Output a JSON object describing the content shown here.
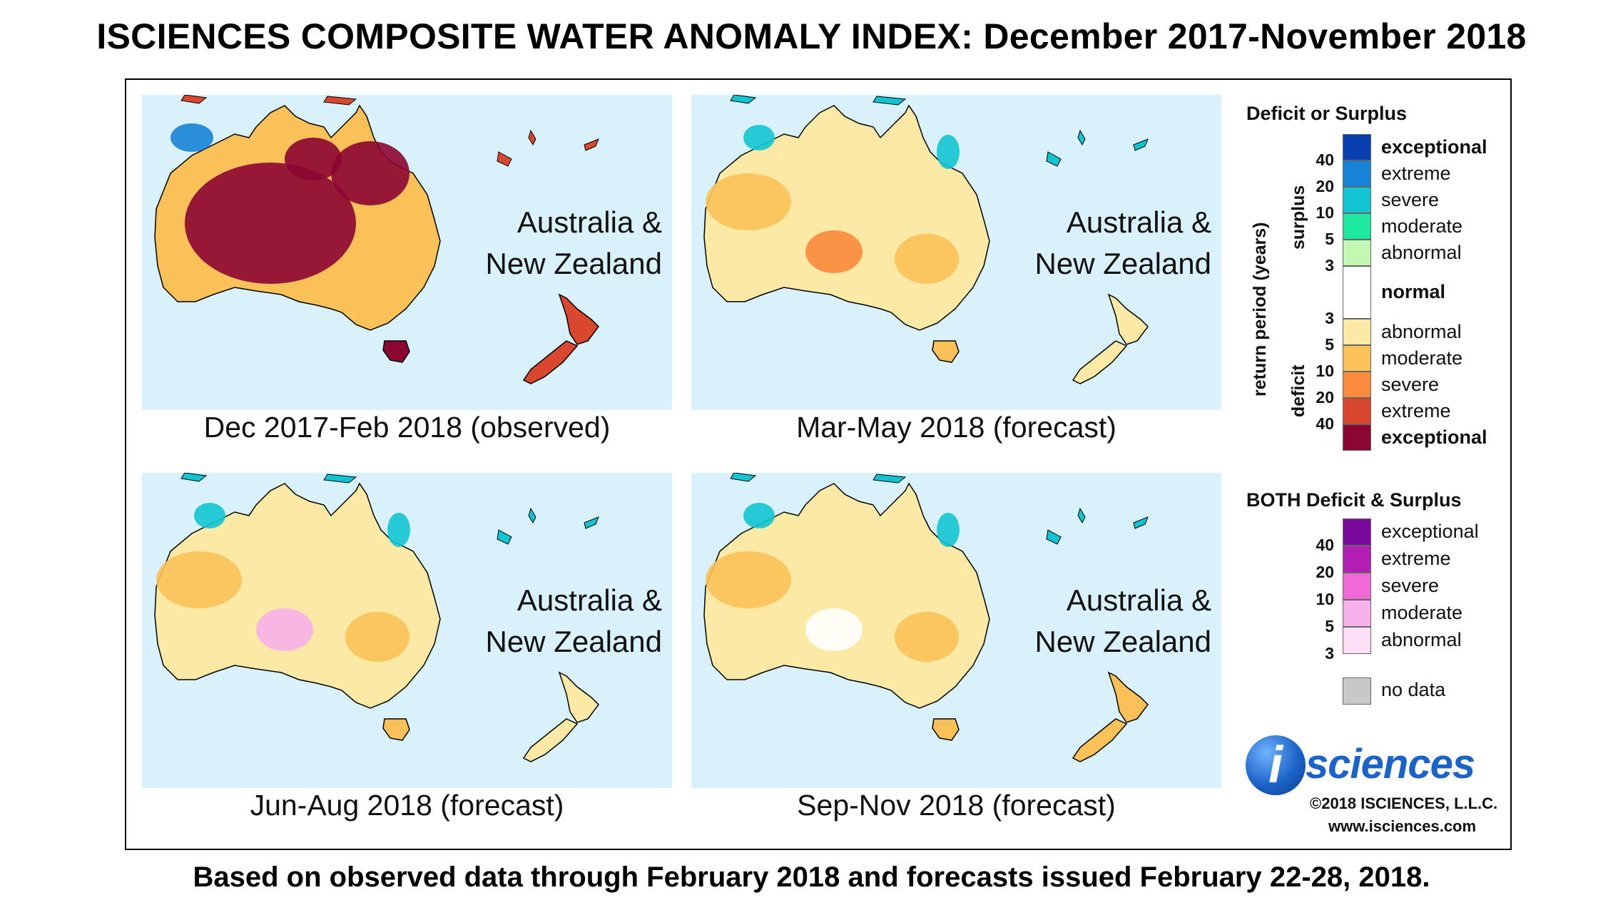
{
  "title": "ISCIENCES COMPOSITE WATER ANOMALY INDEX: December 2017-November 2018",
  "footer": "Based on observed data through February 2018 and forecasts issued February 22-28, 2018.",
  "region_label": "Australia &\nNew Zealand",
  "panels": [
    {
      "caption": "Dec 2017-Feb 2018 (observed)",
      "dominant_class": "deficit-exceptional"
    },
    {
      "caption": "Mar-May 2018 (forecast)",
      "dominant_class": "deficit-abnormal"
    },
    {
      "caption": "Jun-Aug 2018 (forecast)",
      "dominant_class": "deficit-abnormal"
    },
    {
      "caption": "Sep-Nov 2018 (forecast)",
      "dominant_class": "deficit-abnormal"
    }
  ],
  "legend": {
    "title": "Deficit or Surplus",
    "axis_label": "return period (years)",
    "surplus_label": "surplus",
    "deficit_label": "deficit",
    "surplus_classes": [
      {
        "label": "exceptional",
        "color": "#0a3fb0"
      },
      {
        "label": "extreme",
        "color": "#1683d6"
      },
      {
        "label": "severe",
        "color": "#12c4d2"
      },
      {
        "label": "moderate",
        "color": "#1ee8a0"
      },
      {
        "label": "abnormal",
        "color": "#c4f7b4"
      }
    ],
    "normal": {
      "label": "normal",
      "color": "#ffffff"
    },
    "deficit_classes": [
      {
        "label": "abnormal",
        "color": "#fde9a6"
      },
      {
        "label": "moderate",
        "color": "#fbc159"
      },
      {
        "label": "severe",
        "color": "#fa8a3c"
      },
      {
        "label": "extreme",
        "color": "#d9472f"
      },
      {
        "label": "exceptional",
        "color": "#8c0632"
      }
    ],
    "surplus_ticks": [
      "40",
      "20",
      "10",
      "5",
      "3"
    ],
    "deficit_ticks": [
      "3",
      "5",
      "10",
      "20",
      "40"
    ],
    "both_title": "BOTH Deficit & Surplus",
    "both_classes": [
      {
        "label": "exceptional",
        "color": "#7a0a9e"
      },
      {
        "label": "extreme",
        "color": "#b21fb5"
      },
      {
        "label": "severe",
        "color": "#ef6ad6"
      },
      {
        "label": "moderate",
        "color": "#f7b1ea"
      },
      {
        "label": "abnormal",
        "color": "#fde0f5"
      }
    ],
    "both_ticks": [
      "40",
      "20",
      "10",
      "5",
      "3"
    ],
    "nodata": {
      "label": "no data",
      "color": "#c8c8c8"
    }
  },
  "logo": {
    "i": "i",
    "text": "sciences"
  },
  "copyright": "©2018 ISCIENCES, L.L.C.",
  "website": "www.isciences.com",
  "colors": {
    "ocean": "#d9f1fb",
    "land_outline": "#000000"
  }
}
